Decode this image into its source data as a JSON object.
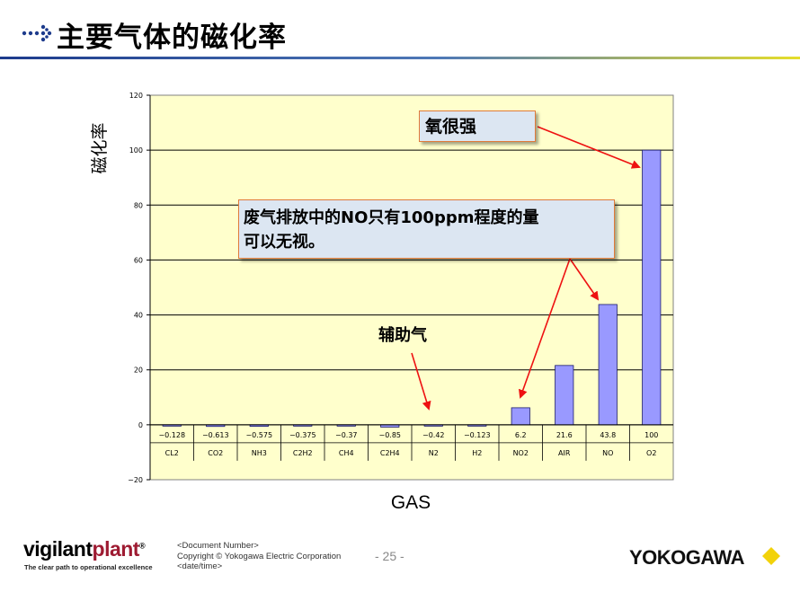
{
  "slide": {
    "title": "主要气体的磁化率"
  },
  "chart_data": {
    "type": "bar",
    "title": "",
    "xlabel": "GAS",
    "ylabel": "磁化率",
    "ylim": [
      -20,
      120
    ],
    "yticks": [
      -20,
      0,
      20,
      40,
      60,
      80,
      100,
      120
    ],
    "grid": true,
    "legend": "none",
    "categories": [
      "CL2",
      "CO2",
      "NH3",
      "C2H2",
      "CH4",
      "C2H4",
      "N2",
      "H2",
      "NO2",
      "AIR",
      "NO",
      "O2"
    ],
    "values": [
      -0.128,
      -0.613,
      -0.575,
      -0.375,
      -0.37,
      -0.85,
      -0.42,
      -0.123,
      6.2,
      21.6,
      43.8,
      100
    ],
    "value_labels": [
      "-0.128",
      "-0.613",
      "-0.575",
      "-0.375",
      "-0.37",
      "-0.85",
      "-0.42",
      "-0.123",
      "6.2",
      "21.6",
      "43.8",
      "100"
    ],
    "colors": {
      "bar": "#9999ff",
      "plot_bg": "#ffffcc",
      "arrow": "#ee1111"
    }
  },
  "annotations": {
    "strong": "氧很强",
    "exhaust_line1": "废气排放中的NO只有100ppm程度的量",
    "exhaust_line2": "可以无视。",
    "auxiliary": "辅助气"
  },
  "footer": {
    "logo_part1": "vigilant",
    "logo_part2": "plant",
    "logo_mark": "®",
    "tagline": "The clear path to operational excellence",
    "doc_number": "<Document  Number>",
    "copyright": "Copyright © Yokogawa Electric Corporation",
    "date": "<date/time>",
    "page": "- 25 -",
    "brand": "YOKOGAWA"
  }
}
